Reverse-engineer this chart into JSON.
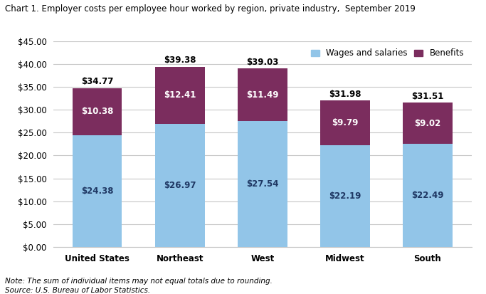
{
  "title": "Chart 1. Employer costs per employee hour worked by region, private industry,  September 2019",
  "categories": [
    "United States",
    "Northeast",
    "West",
    "Midwest",
    "South"
  ],
  "wages": [
    24.38,
    26.97,
    27.54,
    22.19,
    22.49
  ],
  "benefits": [
    10.38,
    12.41,
    11.49,
    9.79,
    9.02
  ],
  "totals": [
    34.77,
    39.38,
    39.03,
    31.98,
    31.51
  ],
  "wages_color": "#92C5E8",
  "benefits_color": "#7B2D5E",
  "ylim": [
    0,
    45
  ],
  "yticks": [
    0,
    5,
    10,
    15,
    20,
    25,
    30,
    35,
    40,
    45
  ],
  "legend_wages": "Wages and salaries",
  "legend_benefits": "Benefits",
  "note": "Note: The sum of individual items may not equal totals due to rounding.",
  "source": "Source: U.S. Bureau of Labor Statistics.",
  "bar_width": 0.6,
  "title_fontsize": 8.5,
  "label_fontsize": 8.5,
  "tick_fontsize": 8.5,
  "note_fontsize": 7.5,
  "legend_fontsize": 8.5,
  "grid_color": "#C8C8C8",
  "background_color": "#FFFFFF",
  "wages_label_color": "#1F3864",
  "benefits_label_color": "#FFFFFF",
  "total_label_color": "#000000"
}
